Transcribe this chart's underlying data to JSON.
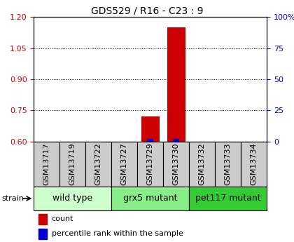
{
  "title": "GDS529 / R16 - C23 : 9",
  "samples": [
    "GSM13717",
    "GSM13719",
    "GSM13722",
    "GSM13727",
    "GSM13729",
    "GSM13730",
    "GSM13732",
    "GSM13733",
    "GSM13734"
  ],
  "count_values": [
    0.6,
    0.6,
    0.6,
    0.6,
    0.72,
    1.15,
    0.6,
    0.6,
    0.6
  ],
  "percentile_values": [
    0,
    0,
    0,
    0,
    2,
    2,
    0,
    0,
    0
  ],
  "ylim_left": [
    0.6,
    1.2
  ],
  "ylim_right": [
    0,
    100
  ],
  "yticks_left": [
    0.6,
    0.75,
    0.9,
    1.05,
    1.2
  ],
  "yticks_right": [
    0,
    25,
    50,
    75,
    100
  ],
  "groups": [
    {
      "label": "wild type",
      "start": 0,
      "end": 3,
      "color": "#ccffcc"
    },
    {
      "label": "grx5 mutant",
      "start": 3,
      "end": 6,
      "color": "#88ee88"
    },
    {
      "label": "pet117 mutant",
      "start": 6,
      "end": 9,
      "color": "#33cc33"
    }
  ],
  "count_color": "#cc0000",
  "percentile_color": "#0000cc",
  "sample_box_color": "#cccccc",
  "title_fontsize": 10,
  "tick_fontsize": 8,
  "label_fontsize": 8,
  "legend_fontsize": 8,
  "group_fontsize": 9
}
